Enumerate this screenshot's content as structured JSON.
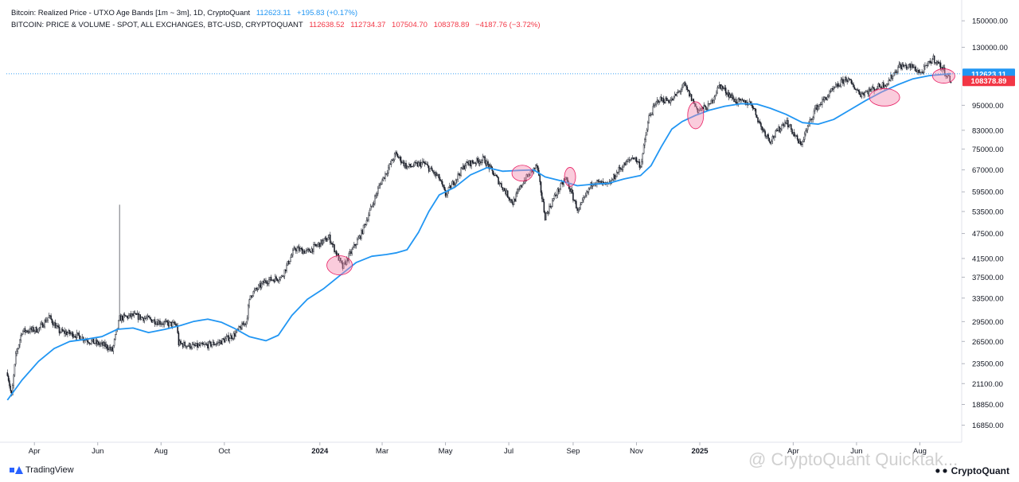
{
  "legend": {
    "line1": {
      "title": "Bitcoin: Realized Price - UTXO Age Bands [1m ~ 3m], 1D, CryptoQuant",
      "value": "112623.11",
      "change": "+195.83 (+0.17%)"
    },
    "line2": {
      "title": "BITCOIN: PRICE & VOLUME - SPOT, ALL EXCHANGES, BTC-USD, CRYPTOQUANT",
      "open": "112638.52",
      "high": "112734.37",
      "low": "107504.70",
      "close": "108378.89",
      "change": "−4187.76 (−3.72%)"
    }
  },
  "branding": {
    "tradingview": "TradingView",
    "watermark": "@ CryptoQuant Quicktak...",
    "cryptoquant": "CryptoQuant"
  },
  "colors": {
    "realized": "#2196f3",
    "candle": "#131722",
    "marker_fill": "rgba(244,143,177,0.45)",
    "marker_stroke": "#e91e63",
    "price_tag": "#f23645",
    "realized_tag": "#2196f3"
  },
  "chart_data": {
    "type": "line",
    "y_scale": "log",
    "ylim": [
      15500,
      165000
    ],
    "y_ticks": [
      150000,
      130000,
      112623.11,
      108378.89,
      95000,
      83000,
      75000,
      67000,
      59500,
      53500,
      47500,
      41500,
      37500,
      33500,
      29500,
      26500,
      23500,
      21100,
      18850,
      16850
    ],
    "y_tick_labels": [
      "150000.00",
      "130000.00",
      "",
      "",
      "95000.00",
      "83000.00",
      "75000.00",
      "67000.00",
      "59500.00",
      "53500.00",
      "47500.00",
      "41500.00",
      "37500.00",
      "33500.00",
      "29500.00",
      "26500.00",
      "23500.00",
      "21100.00",
      "18850.00",
      "16850.00"
    ],
    "x_range": [
      "2023-03-05",
      "2025-09-08"
    ],
    "x_ticks": [
      {
        "date": "2023-04-01",
        "label": "Apr",
        "bold": false
      },
      {
        "date": "2023-06-01",
        "label": "Jun",
        "bold": false
      },
      {
        "date": "2023-08-01",
        "label": "Aug",
        "bold": false
      },
      {
        "date": "2023-10-01",
        "label": "Oct",
        "bold": false
      },
      {
        "date": "2024-01-01",
        "label": "2024",
        "bold": true
      },
      {
        "date": "2024-03-01",
        "label": "Mar",
        "bold": false
      },
      {
        "date": "2024-05-01",
        "label": "May",
        "bold": false
      },
      {
        "date": "2024-07-01",
        "label": "Jul",
        "bold": false
      },
      {
        "date": "2024-09-01",
        "label": "Sep",
        "bold": false
      },
      {
        "date": "2024-11-01",
        "label": "Nov",
        "bold": false
      },
      {
        "date": "2025-01-01",
        "label": "2025",
        "bold": true
      },
      {
        "date": "2025-04-01",
        "label": "Apr",
        "bold": false
      },
      {
        "date": "2025-06-01",
        "label": "Jun",
        "bold": false
      },
      {
        "date": "2025-08-01",
        "label": "Aug",
        "bold": false
      }
    ],
    "last_value_tags": [
      {
        "value": 112623.11,
        "label": "112623.11",
        "series": "realized"
      },
      {
        "value": 108378.89,
        "label": "108378.89",
        "series": "price"
      }
    ],
    "series": [
      {
        "key": "realized",
        "style": "line",
        "points": [
          [
            "2023-03-06",
            19300
          ],
          [
            "2023-03-20",
            21500
          ],
          [
            "2023-04-05",
            23800
          ],
          [
            "2023-04-20",
            25500
          ],
          [
            "2023-05-05",
            26500
          ],
          [
            "2023-05-20",
            26800
          ],
          [
            "2023-06-05",
            27200
          ],
          [
            "2023-06-20",
            28300
          ],
          [
            "2023-07-05",
            28500
          ],
          [
            "2023-07-20",
            27800
          ],
          [
            "2023-08-05",
            28300
          ],
          [
            "2023-08-20",
            28900
          ],
          [
            "2023-09-01",
            29500
          ],
          [
            "2023-09-15",
            29900
          ],
          [
            "2023-09-28",
            29400
          ],
          [
            "2023-10-10",
            28500
          ],
          [
            "2023-10-25",
            27200
          ],
          [
            "2023-11-10",
            26600
          ],
          [
            "2023-11-22",
            27400
          ],
          [
            "2023-12-05",
            30500
          ],
          [
            "2023-12-20",
            33300
          ],
          [
            "2024-01-05",
            35300
          ],
          [
            "2024-01-20",
            37800
          ],
          [
            "2024-02-05",
            40600
          ],
          [
            "2024-02-20",
            42000
          ],
          [
            "2024-03-05",
            42400
          ],
          [
            "2024-03-15",
            42800
          ],
          [
            "2024-03-25",
            43500
          ],
          [
            "2024-04-05",
            47800
          ],
          [
            "2024-04-15",
            53500
          ],
          [
            "2024-04-25",
            58500
          ],
          [
            "2024-05-10",
            61000
          ],
          [
            "2024-05-25",
            65200
          ],
          [
            "2024-06-10",
            67800
          ],
          [
            "2024-06-25",
            66500
          ],
          [
            "2024-07-10",
            66800
          ],
          [
            "2024-07-25",
            67000
          ],
          [
            "2024-08-05",
            64500
          ],
          [
            "2024-08-20",
            63200
          ],
          [
            "2024-09-05",
            61500
          ],
          [
            "2024-09-20",
            62000
          ],
          [
            "2024-10-05",
            62300
          ],
          [
            "2024-10-20",
            63800
          ],
          [
            "2024-11-05",
            65000
          ],
          [
            "2024-11-15",
            68500
          ],
          [
            "2024-11-25",
            76000
          ],
          [
            "2024-12-05",
            83500
          ],
          [
            "2024-12-15",
            87000
          ],
          [
            "2024-12-28",
            90000
          ],
          [
            "2025-01-10",
            92500
          ],
          [
            "2025-01-25",
            94500
          ],
          [
            "2025-02-10",
            95800
          ],
          [
            "2025-02-25",
            95600
          ],
          [
            "2025-03-10",
            93500
          ],
          [
            "2025-03-25",
            90500
          ],
          [
            "2025-04-10",
            86500
          ],
          [
            "2025-04-25",
            85800
          ],
          [
            "2025-05-10",
            88000
          ],
          [
            "2025-05-25",
            92500
          ],
          [
            "2025-06-10",
            97500
          ],
          [
            "2025-06-25",
            102000
          ],
          [
            "2025-07-10",
            106000
          ],
          [
            "2025-07-25",
            109500
          ],
          [
            "2025-08-10",
            111500
          ],
          [
            "2025-08-22",
            112200
          ],
          [
            "2025-08-31",
            112623
          ]
        ]
      },
      {
        "key": "price",
        "style": "candlestick",
        "anchors": [
          [
            "2023-03-06",
            22400
          ],
          [
            "2023-03-10",
            19600
          ],
          [
            "2023-03-14",
            24500
          ],
          [
            "2023-03-20",
            28000
          ],
          [
            "2023-04-05",
            28300
          ],
          [
            "2023-04-15",
            30300
          ],
          [
            "2023-04-25",
            28000
          ],
          [
            "2023-05-10",
            27500
          ],
          [
            "2023-05-25",
            26500
          ],
          [
            "2023-06-10",
            25800
          ],
          [
            "2023-06-15",
            25200
          ],
          [
            "2023-06-22",
            30000
          ],
          [
            "2023-07-05",
            30500
          ],
          [
            "2023-07-20",
            29900
          ],
          [
            "2023-08-05",
            29200
          ],
          [
            "2023-08-16",
            29000
          ],
          [
            "2023-08-18",
            26200
          ],
          [
            "2023-09-01",
            25800
          ],
          [
            "2023-09-12",
            25900
          ],
          [
            "2023-09-25",
            26300
          ],
          [
            "2023-10-10",
            27400
          ],
          [
            "2023-10-22",
            29500
          ],
          [
            "2023-10-26",
            34000
          ],
          [
            "2023-11-10",
            36800
          ],
          [
            "2023-11-25",
            37500
          ],
          [
            "2023-12-08",
            43800
          ],
          [
            "2023-12-20",
            43000
          ],
          [
            "2024-01-10",
            46500
          ],
          [
            "2024-01-23",
            39500
          ],
          [
            "2024-02-10",
            47500
          ],
          [
            "2024-02-28",
            62000
          ],
          [
            "2024-03-14",
            73000
          ],
          [
            "2024-03-25",
            68000
          ],
          [
            "2024-04-10",
            69500
          ],
          [
            "2024-04-25",
            64000
          ],
          [
            "2024-05-01",
            58500
          ],
          [
            "2024-05-20",
            69000
          ],
          [
            "2024-06-07",
            71000
          ],
          [
            "2024-06-25",
            61000
          ],
          [
            "2024-07-05",
            56000
          ],
          [
            "2024-07-15",
            63000
          ],
          [
            "2024-07-28",
            68500
          ],
          [
            "2024-08-05",
            52000
          ],
          [
            "2024-08-15",
            58500
          ],
          [
            "2024-08-25",
            64000
          ],
          [
            "2024-09-06",
            53500
          ],
          [
            "2024-09-20",
            63000
          ],
          [
            "2024-10-05",
            61500
          ],
          [
            "2024-10-15",
            67000
          ],
          [
            "2024-10-29",
            72000
          ],
          [
            "2024-11-05",
            68500
          ],
          [
            "2024-11-13",
            89000
          ],
          [
            "2024-11-22",
            98000
          ],
          [
            "2024-12-05",
            97500
          ],
          [
            "2024-12-17",
            106000
          ],
          [
            "2024-12-30",
            92500
          ],
          [
            "2025-01-10",
            94500
          ],
          [
            "2025-01-20",
            106000
          ],
          [
            "2025-02-05",
            97000
          ],
          [
            "2025-02-20",
            96000
          ],
          [
            "2025-03-01",
            84500
          ],
          [
            "2025-03-10",
            78500
          ],
          [
            "2025-03-25",
            87500
          ],
          [
            "2025-04-08",
            76500
          ],
          [
            "2025-04-22",
            93000
          ],
          [
            "2025-05-10",
            103500
          ],
          [
            "2025-05-22",
            110000
          ],
          [
            "2025-06-05",
            101000
          ],
          [
            "2025-06-20",
            104500
          ],
          [
            "2025-07-01",
            107500
          ],
          [
            "2025-07-12",
            117500
          ],
          [
            "2025-07-25",
            117000
          ],
          [
            "2025-08-02",
            113000
          ],
          [
            "2025-08-14",
            122500
          ],
          [
            "2025-08-22",
            116500
          ],
          [
            "2025-08-31",
            108378
          ]
        ],
        "spike": {
          "date": "2023-06-22",
          "high": 55500
        }
      }
    ],
    "annotations": [
      {
        "type": "ellipse",
        "date": "2024-01-20",
        "value": 40000,
        "rx": 16,
        "ry": 12
      },
      {
        "type": "ellipse",
        "date": "2024-07-14",
        "value": 65800,
        "rx": 13,
        "ry": 10
      },
      {
        "type": "ellipse",
        "date": "2024-08-29",
        "value": 64500,
        "rx": 7,
        "ry": 12
      },
      {
        "type": "ellipse",
        "date": "2024-12-28",
        "value": 90000,
        "rx": 10,
        "ry": 17
      },
      {
        "type": "ellipse",
        "date": "2025-06-28",
        "value": 99200,
        "rx": 19,
        "ry": 11
      },
      {
        "type": "ellipse",
        "date": "2025-08-24",
        "value": 111300,
        "rx": 14,
        "ry": 9
      }
    ]
  }
}
